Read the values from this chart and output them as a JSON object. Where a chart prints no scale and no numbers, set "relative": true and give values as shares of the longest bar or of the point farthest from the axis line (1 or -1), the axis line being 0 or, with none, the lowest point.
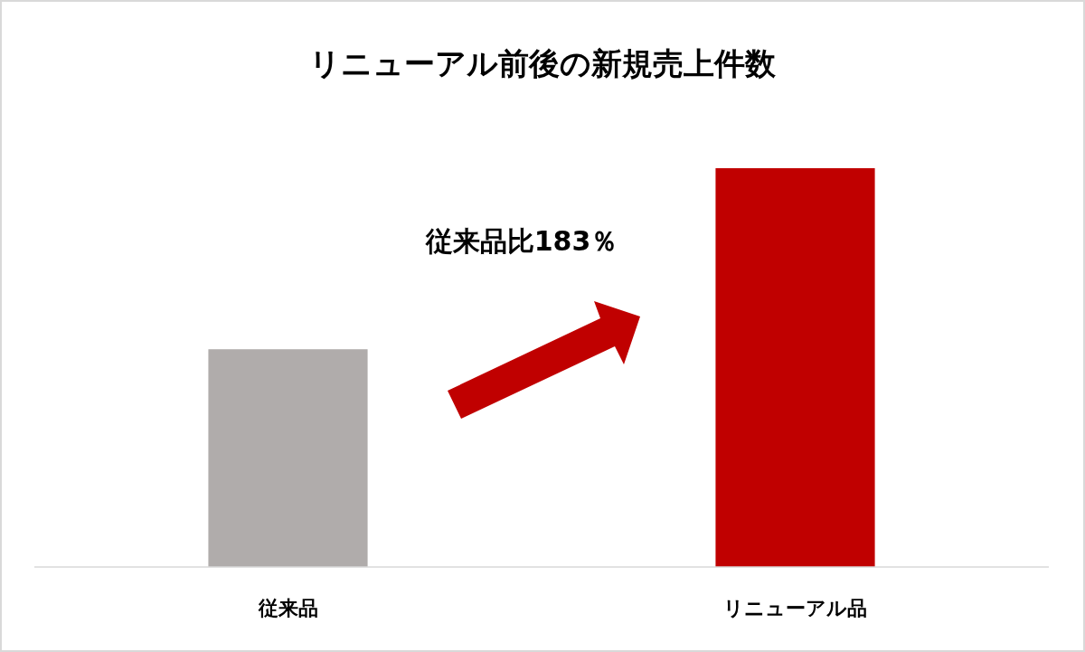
{
  "chart_data": {
    "type": "bar",
    "title": "リニューアル前後の新規売上件数",
    "categories": [
      "従来品",
      "リニューアル品"
    ],
    "values": [
      0.546,
      1
    ],
    "colors": [
      "#b0acab",
      "#c00000"
    ],
    "relative": true,
    "annotations": [
      "従来品比183％"
    ]
  }
}
